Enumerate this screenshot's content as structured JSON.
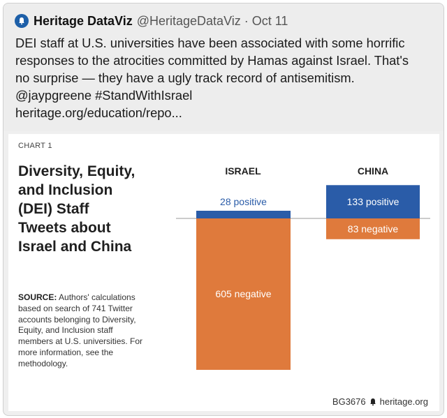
{
  "tweet": {
    "author": "Heritage DataViz",
    "handle": "@HeritageDataViz",
    "separator": "·",
    "date": "Oct 11",
    "lines": [
      "DEI staff at U.S. universities have been associated with some horrific",
      "responses to the atrocities committed by Hamas against Israel. That's",
      "no surprise — they have a ugly track record of antisemitism.",
      "@jaypgreene #StandWithIsrael",
      "heritage.org/education/repo..."
    ]
  },
  "chart": {
    "label": "CHART 1",
    "title_lines": [
      "Diversity, Equity,",
      "and Inclusion",
      "(DEI) Staff",
      "Tweets about",
      "Israel and China"
    ],
    "source_label": "SOURCE:",
    "source_lines": [
      " Authors' calculations",
      "based on search of 741 Twitter",
      "accounts belonging to Diversity,",
      "Equity, and Inclusion staff",
      "members at U.S. universities. For",
      "more information, see the",
      "methodology."
    ],
    "footer_code": "BG3676",
    "footer_site": "heritage.org",
    "colors": {
      "positive": "#2a5ca8",
      "negative": "#df7a3c",
      "baseline": "#9a9a9a"
    }
  },
  "chart_data": {
    "type": "bar",
    "categories": [
      "ISRAEL",
      "CHINA"
    ],
    "series": [
      {
        "name": "positive",
        "values": [
          28,
          133
        ]
      },
      {
        "name": "negative",
        "values": [
          605,
          83
        ]
      }
    ],
    "labels": {
      "positive": [
        "28 positive",
        "133 positive"
      ],
      "negative": [
        "605 negative",
        "83 negative"
      ]
    },
    "baseline": 0
  }
}
